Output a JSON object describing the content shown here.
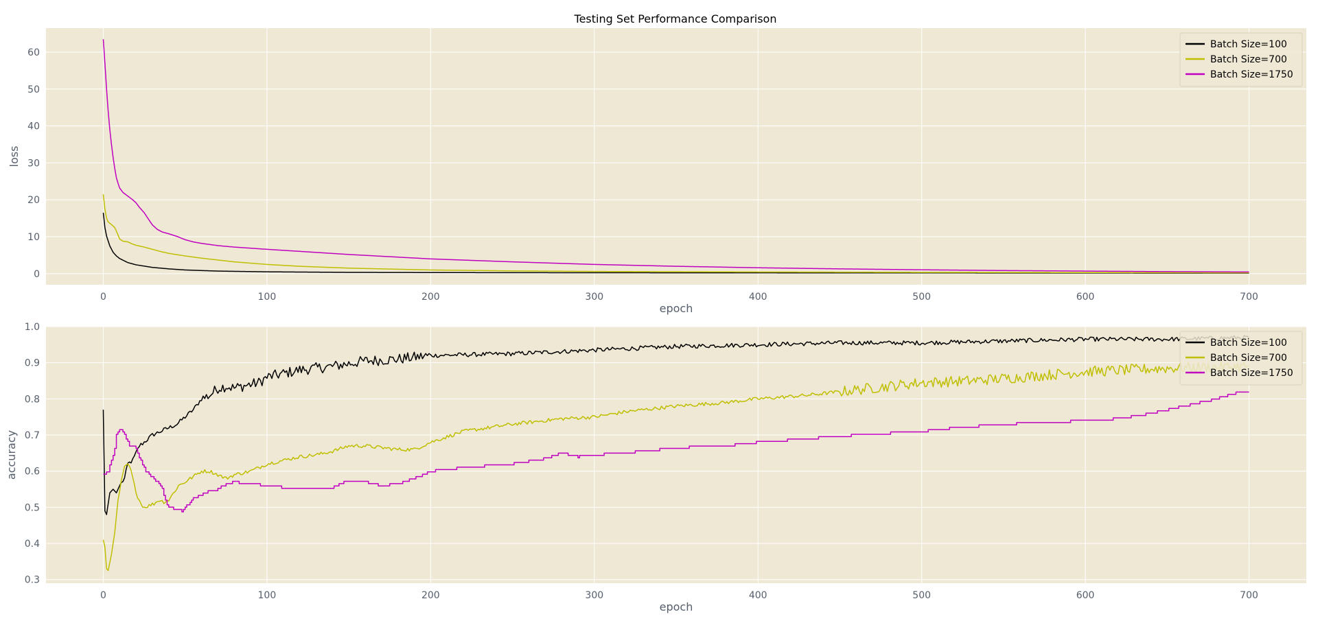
{
  "figure": {
    "title": "Testing Set Performance Comparison",
    "background": "#ffffff",
    "axes_bg": "#efe8d5",
    "grid_color": "#ffffff",
    "tick_color": "#555e6a"
  },
  "series_styles": [
    {
      "name": "Batch Size=100",
      "color": "#000000"
    },
    {
      "name": "Batch Size=700",
      "color": "#bfbf00"
    },
    {
      "name": "Batch Size=1750",
      "color": "#c000c0"
    }
  ],
  "chart_data": [
    {
      "type": "line",
      "title": "Testing Set Performance Comparison",
      "xlabel": "epoch",
      "ylabel": "loss",
      "xlim": [
        -35,
        735
      ],
      "ylim": [
        -3,
        66.5
      ],
      "xticks": [
        0,
        100,
        200,
        300,
        400,
        500,
        600,
        700
      ],
      "yticks": [
        0,
        10,
        20,
        30,
        40,
        50,
        60
      ],
      "grid": true,
      "legend": "top-right",
      "series": [
        {
          "name": "Batch Size=100",
          "points": [
            [
              0,
              16.5
            ],
            [
              1,
              12.5
            ],
            [
              2,
              10.2
            ],
            [
              4,
              7.5
            ],
            [
              6,
              5.8
            ],
            [
              8,
              4.8
            ],
            [
              10,
              4.1
            ],
            [
              15,
              3.0
            ],
            [
              20,
              2.4
            ],
            [
              30,
              1.7
            ],
            [
              40,
              1.3
            ],
            [
              50,
              1.0
            ],
            [
              70,
              0.7
            ],
            [
              100,
              0.5
            ],
            [
              150,
              0.35
            ],
            [
              200,
              0.3
            ],
            [
              300,
              0.25
            ],
            [
              400,
              0.22
            ],
            [
              500,
              0.2
            ],
            [
              600,
              0.18
            ],
            [
              700,
              0.15
            ]
          ]
        },
        {
          "name": "Batch Size=700",
          "points": [
            [
              0,
              21.5
            ],
            [
              1,
              17.5
            ],
            [
              2,
              15
            ],
            [
              3,
              14
            ],
            [
              5,
              13.3
            ],
            [
              7,
              12.5
            ],
            [
              9,
              10.5
            ],
            [
              10,
              9.4
            ],
            [
              12,
              8.8
            ],
            [
              15,
              8.6
            ],
            [
              18,
              8.0
            ],
            [
              20,
              7.7
            ],
            [
              25,
              7.2
            ],
            [
              30,
              6.6
            ],
            [
              35,
              6.0
            ],
            [
              40,
              5.5
            ],
            [
              50,
              4.8
            ],
            [
              60,
              4.2
            ],
            [
              70,
              3.7
            ],
            [
              80,
              3.2
            ],
            [
              100,
              2.5
            ],
            [
              120,
              2.0
            ],
            [
              150,
              1.5
            ],
            [
              200,
              1.0
            ],
            [
              250,
              0.75
            ],
            [
              300,
              0.6
            ],
            [
              400,
              0.45
            ],
            [
              500,
              0.35
            ],
            [
              600,
              0.3
            ],
            [
              700,
              0.25
            ]
          ]
        },
        {
          "name": "Batch Size=1750",
          "points": [
            [
              0,
              63.5
            ],
            [
              1,
              57
            ],
            [
              2,
              50
            ],
            [
              3,
              44
            ],
            [
              4,
              39
            ],
            [
              5,
              35
            ],
            [
              6,
              31.5
            ],
            [
              7,
              28.5
            ],
            [
              8,
              26
            ],
            [
              9,
              24.5
            ],
            [
              10,
              23.2
            ],
            [
              12,
              22
            ],
            [
              15,
              21
            ],
            [
              18,
              20
            ],
            [
              20,
              19.2
            ],
            [
              22,
              18
            ],
            [
              25,
              16.5
            ],
            [
              28,
              14.5
            ],
            [
              30,
              13.2
            ],
            [
              33,
              12
            ],
            [
              36,
              11.3
            ],
            [
              40,
              10.8
            ],
            [
              45,
              10.1
            ],
            [
              50,
              9.2
            ],
            [
              55,
              8.6
            ],
            [
              60,
              8.2
            ],
            [
              70,
              7.6
            ],
            [
              80,
              7.2
            ],
            [
              100,
              6.6
            ],
            [
              150,
              5.2
            ],
            [
              200,
              4.0
            ],
            [
              250,
              3.2
            ],
            [
              300,
              2.5
            ],
            [
              350,
              2.0
            ],
            [
              400,
              1.6
            ],
            [
              450,
              1.3
            ],
            [
              500,
              1.05
            ],
            [
              550,
              0.85
            ],
            [
              600,
              0.7
            ],
            [
              650,
              0.55
            ],
            [
              700,
              0.45
            ]
          ]
        }
      ]
    },
    {
      "type": "line",
      "xlabel": "epoch",
      "ylabel": "accuracy",
      "xlim": [
        -35,
        735
      ],
      "ylim": [
        0.29,
        1.0
      ],
      "xticks": [
        0,
        100,
        200,
        300,
        400,
        500,
        600,
        700
      ],
      "yticks": [
        0.3,
        0.4,
        0.5,
        0.6,
        0.7,
        0.8,
        0.9,
        1.0
      ],
      "grid": true,
      "legend": "top-right",
      "series": [
        {
          "name": "Batch Size=100",
          "noise": 0.006,
          "points": [
            [
              0,
              0.77
            ],
            [
              1,
              0.49
            ],
            [
              2,
              0.48
            ],
            [
              4,
              0.54
            ],
            [
              6,
              0.55
            ],
            [
              8,
              0.54
            ],
            [
              10,
              0.56
            ],
            [
              13,
              0.58
            ],
            [
              15,
              0.62
            ],
            [
              18,
              0.63
            ],
            [
              20,
              0.65
            ],
            [
              22,
              0.67
            ],
            [
              25,
              0.68
            ],
            [
              30,
              0.7
            ],
            [
              35,
              0.71
            ],
            [
              40,
              0.72
            ],
            [
              45,
              0.73
            ],
            [
              50,
              0.75
            ],
            [
              55,
              0.77
            ],
            [
              60,
              0.8
            ],
            [
              65,
              0.81
            ],
            [
              70,
              0.83
            ],
            [
              75,
              0.835
            ],
            [
              80,
              0.83
            ],
            [
              85,
              0.835
            ],
            [
              90,
              0.84
            ],
            [
              95,
              0.845
            ],
            [
              100,
              0.86
            ],
            [
              110,
              0.87
            ],
            [
              120,
              0.88
            ],
            [
              140,
              0.89
            ],
            [
              160,
              0.905
            ],
            [
              180,
              0.91
            ],
            [
              200,
              0.92
            ],
            [
              250,
              0.925
            ],
            [
              300,
              0.935
            ],
            [
              350,
              0.945
            ],
            [
              400,
              0.95
            ],
            [
              450,
              0.955
            ],
            [
              500,
              0.955
            ],
            [
              550,
              0.96
            ],
            [
              600,
              0.965
            ],
            [
              650,
              0.965
            ],
            [
              700,
              0.97
            ]
          ]
        },
        {
          "name": "Batch Size=700",
          "noise": 0.005,
          "points": [
            [
              0,
              0.41
            ],
            [
              1,
              0.39
            ],
            [
              2,
              0.33
            ],
            [
              3,
              0.325
            ],
            [
              5,
              0.37
            ],
            [
              7,
              0.43
            ],
            [
              9,
              0.52
            ],
            [
              11,
              0.57
            ],
            [
              13,
              0.61
            ],
            [
              15,
              0.62
            ],
            [
              17,
              0.6
            ],
            [
              19,
              0.56
            ],
            [
              21,
              0.53
            ],
            [
              23,
              0.51
            ],
            [
              25,
              0.5
            ],
            [
              28,
              0.505
            ],
            [
              31,
              0.51
            ],
            [
              34,
              0.52
            ],
            [
              37,
              0.515
            ],
            [
              40,
              0.52
            ],
            [
              43,
              0.54
            ],
            [
              46,
              0.56
            ],
            [
              50,
              0.57
            ],
            [
              55,
              0.585
            ],
            [
              60,
              0.6
            ],
            [
              65,
              0.6
            ],
            [
              70,
              0.59
            ],
            [
              75,
              0.58
            ],
            [
              80,
              0.59
            ],
            [
              90,
              0.6
            ],
            [
              100,
              0.62
            ],
            [
              110,
              0.63
            ],
            [
              120,
              0.64
            ],
            [
              130,
              0.645
            ],
            [
              140,
              0.655
            ],
            [
              150,
              0.67
            ],
            [
              160,
              0.67
            ],
            [
              170,
              0.665
            ],
            [
              180,
              0.66
            ],
            [
              190,
              0.66
            ],
            [
              200,
              0.68
            ],
            [
              220,
              0.71
            ],
            [
              250,
              0.73
            ],
            [
              280,
              0.745
            ],
            [
              300,
              0.75
            ],
            [
              320,
              0.765
            ],
            [
              350,
              0.78
            ],
            [
              380,
              0.79
            ],
            [
              400,
              0.8
            ],
            [
              430,
              0.81
            ],
            [
              450,
              0.82
            ],
            [
              480,
              0.835
            ],
            [
              500,
              0.845
            ],
            [
              530,
              0.85
            ],
            [
              560,
              0.86
            ],
            [
              600,
              0.875
            ],
            [
              650,
              0.885
            ],
            [
              700,
              0.89
            ]
          ]
        },
        {
          "name": "Batch Size=1750",
          "step": true,
          "points": [
            [
              0,
              0.59
            ],
            [
              3,
              0.6
            ],
            [
              5,
              0.63
            ],
            [
              7,
              0.66
            ],
            [
              8,
              0.7
            ],
            [
              9,
              0.71
            ],
            [
              10,
              0.715
            ],
            [
              12,
              0.71
            ],
            [
              14,
              0.69
            ],
            [
              16,
              0.67
            ],
            [
              20,
              0.665
            ],
            [
              22,
              0.64
            ],
            [
              24,
              0.62
            ],
            [
              26,
              0.6
            ],
            [
              28,
              0.59
            ],
            [
              30,
              0.585
            ],
            [
              33,
              0.57
            ],
            [
              36,
              0.55
            ],
            [
              38,
              0.52
            ],
            [
              40,
              0.5
            ],
            [
              45,
              0.495
            ],
            [
              48,
              0.49
            ],
            [
              52,
              0.51
            ],
            [
              55,
              0.525
            ],
            [
              60,
              0.535
            ],
            [
              65,
              0.545
            ],
            [
              70,
              0.55
            ],
            [
              75,
              0.565
            ],
            [
              80,
              0.57
            ],
            [
              90,
              0.565
            ],
            [
              100,
              0.56
            ],
            [
              110,
              0.555
            ],
            [
              120,
              0.55
            ],
            [
              130,
              0.55
            ],
            [
              140,
              0.555
            ],
            [
              150,
              0.575
            ],
            [
              160,
              0.57
            ],
            [
              170,
              0.56
            ],
            [
              180,
              0.565
            ],
            [
              190,
              0.58
            ],
            [
              200,
              0.6
            ],
            [
              220,
              0.61
            ],
            [
              250,
              0.62
            ],
            [
              270,
              0.635
            ],
            [
              280,
              0.65
            ],
            [
              290,
              0.64
            ],
            [
              300,
              0.645
            ],
            [
              330,
              0.655
            ],
            [
              350,
              0.665
            ],
            [
              380,
              0.67
            ],
            [
              400,
              0.68
            ],
            [
              430,
              0.69
            ],
            [
              460,
              0.7
            ],
            [
              480,
              0.705
            ],
            [
              500,
              0.71
            ],
            [
              520,
              0.72
            ],
            [
              550,
              0.73
            ],
            [
              580,
              0.735
            ],
            [
              600,
              0.74
            ],
            [
              620,
              0.745
            ],
            [
              640,
              0.76
            ],
            [
              660,
              0.78
            ],
            [
              680,
              0.8
            ],
            [
              690,
              0.815
            ],
            [
              700,
              0.82
            ]
          ]
        }
      ]
    }
  ]
}
